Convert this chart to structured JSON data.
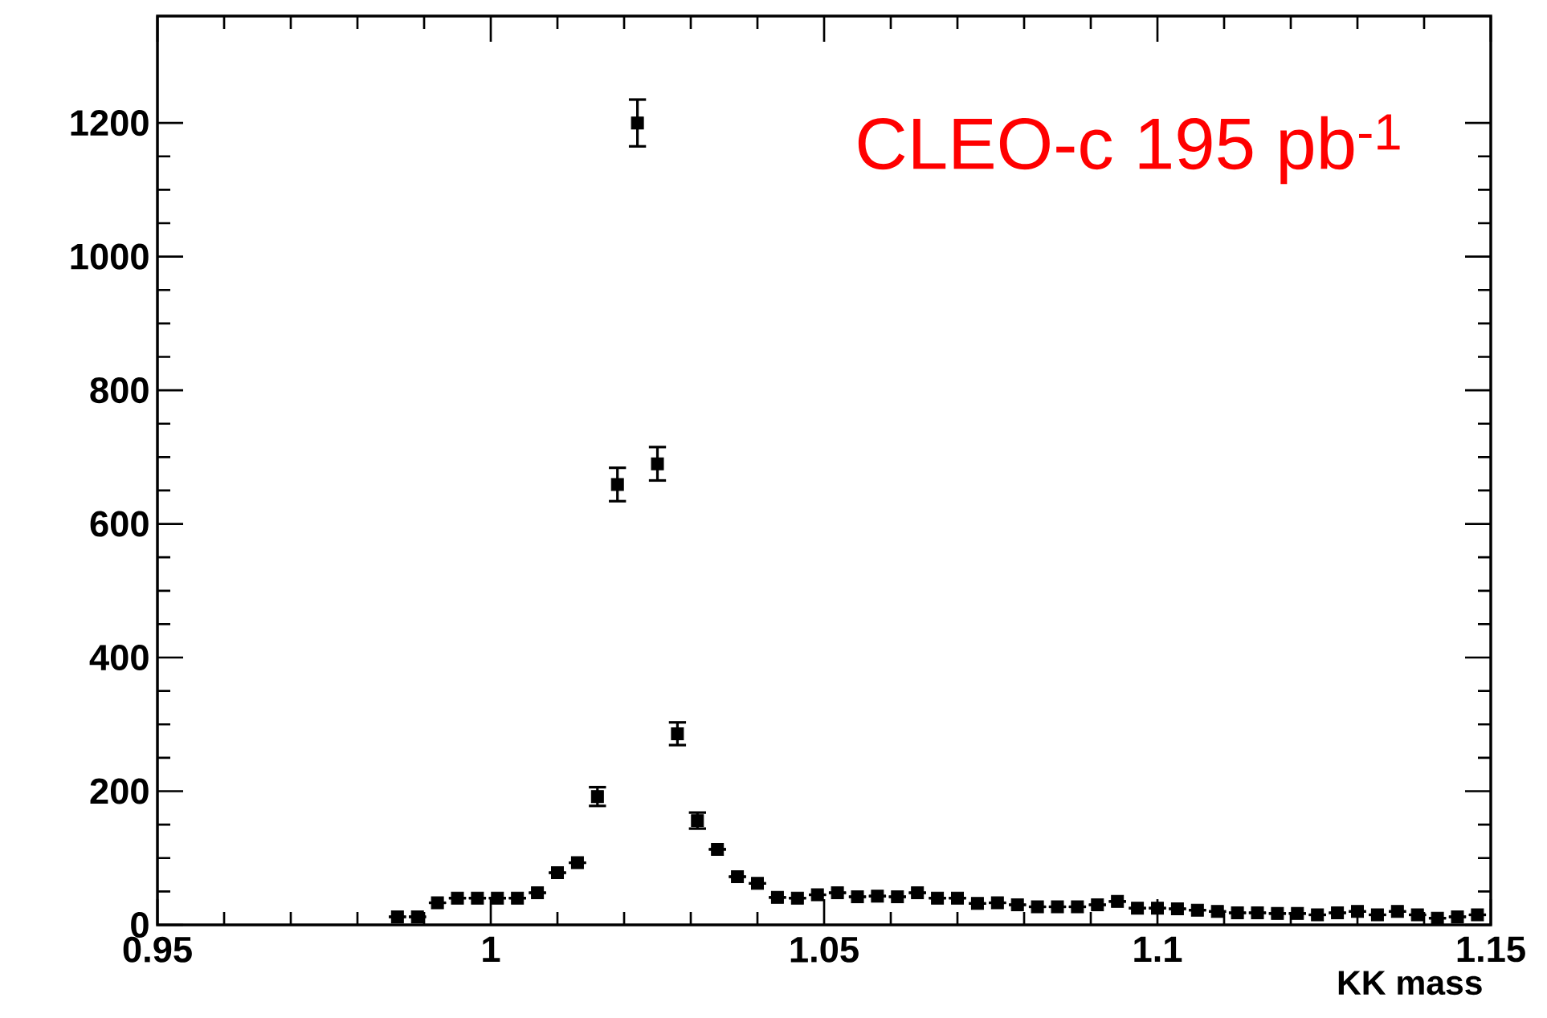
{
  "chart_data": {
    "type": "scatter",
    "xlabel": "KK mass",
    "annotations": [
      "CLEO-c 195 pb$^{-1}$"
    ],
    "xlim": [
      0.95,
      1.15
    ],
    "ylim": [
      0,
      1360
    ],
    "xticks": [
      0.95,
      1,
      1.05,
      1.1,
      1.15
    ],
    "yticks": [
      0,
      200,
      400,
      600,
      800,
      1000,
      1200
    ],
    "marker": "square",
    "series": [
      {
        "color": "#000000",
        "x": [
          0.986,
          0.989,
          0.992,
          0.995,
          0.998,
          1.001,
          1.004,
          1.007,
          1.01,
          1.013,
          1.016,
          1.019,
          1.022,
          1.025,
          1.028,
          1.031,
          1.034,
          1.037,
          1.04,
          1.043,
          1.046,
          1.049,
          1.052,
          1.055,
          1.058,
          1.061,
          1.064,
          1.067,
          1.07,
          1.073,
          1.076,
          1.079,
          1.082,
          1.085,
          1.088,
          1.091,
          1.094,
          1.097,
          1.1,
          1.103,
          1.106,
          1.109,
          1.112,
          1.115,
          1.118,
          1.121,
          1.124,
          1.127,
          1.13,
          1.133,
          1.136,
          1.139,
          1.142,
          1.145,
          1.148
        ],
        "values": [
          12,
          12,
          33,
          40,
          40,
          40,
          40,
          48,
          78,
          93,
          192,
          659,
          1200,
          690,
          286,
          156,
          113,
          72,
          62,
          41,
          40,
          45,
          48,
          42,
          43,
          42,
          48,
          40,
          40,
          32,
          33,
          30,
          27,
          27,
          27,
          30,
          35,
          25,
          25,
          24,
          22,
          20,
          18,
          18,
          17,
          17,
          15,
          18,
          20,
          15,
          20,
          15,
          10,
          12,
          15
        ],
        "errors": [
          null,
          null,
          null,
          null,
          null,
          null,
          null,
          null,
          null,
          null,
          14,
          25,
          35,
          25,
          17,
          12,
          null,
          null,
          null,
          null,
          null,
          null,
          null,
          null,
          null,
          null,
          null,
          null,
          null,
          null,
          null,
          null,
          null,
          null,
          null,
          null,
          null,
          null,
          null,
          null,
          null,
          null,
          null,
          null,
          null,
          null,
          null,
          null,
          null,
          null,
          null,
          null,
          null,
          null,
          null
        ]
      }
    ]
  }
}
